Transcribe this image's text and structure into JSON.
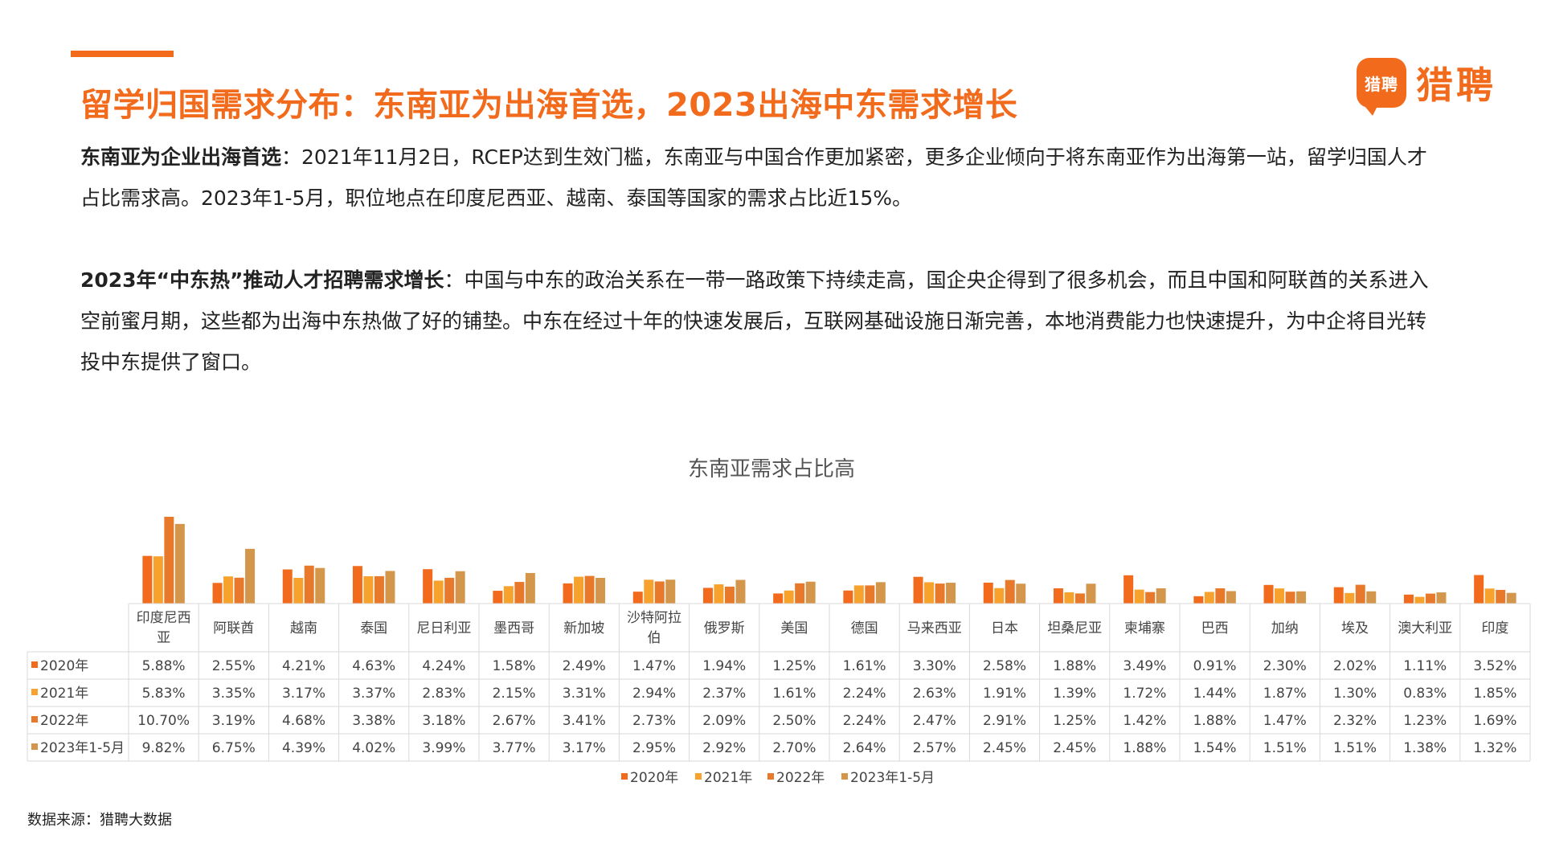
{
  "page": {
    "title": "留学归国需求分布：东南亚为出海首选，2023出海中东需求增长",
    "logo_badge": "猎聘",
    "logo_text": "猎聘",
    "para1_bold": "东南亚为企业出海首选",
    "para1_text": "：2021年11月2日，RCEP达到生效门槛，东南亚与中国合作更加紧密，更多企业倾向于将东南亚作为出海第一站，留学归国人才占比需求高。2023年1-5月，职位地点在印度尼西亚、越南、泰国等国家的需求占比近15%。",
    "para2_bold": "2023年“中东热”推动人才招聘需求增长",
    "para2_text": "：中国与中东的政治关系在一带一路政策下持续走高，国企央企得到了很多机会，而且中国和阿联酋的关系进入空前蜜月期，这些都为出海中东热做了好的铺垫。中东在经过十年的快速发展后，互联网基础设施日渐完善，本地消费能力也快速提升，为中企将目光转投中东提供了窗口。",
    "source": "数据来源：猎聘大数据"
  },
  "chart_data": {
    "type": "bar",
    "title": "东南亚需求占比高",
    "categories": [
      "印度尼西亚",
      "阿联酋",
      "越南",
      "泰国",
      "尼日利亚",
      "墨西哥",
      "新加坡",
      "沙特阿拉伯",
      "俄罗斯",
      "美国",
      "德国",
      "马来西亚",
      "日本",
      "坦桑尼亚",
      "柬埔寨",
      "巴西",
      "加纳",
      "埃及",
      "澳大利亚",
      "印度"
    ],
    "series": [
      {
        "name": "2020年",
        "color": "#f26b1d",
        "values": [
          5.88,
          2.55,
          4.21,
          4.63,
          4.24,
          1.58,
          2.49,
          1.47,
          1.94,
          1.25,
          1.61,
          3.3,
          2.58,
          1.88,
          3.49,
          0.91,
          2.3,
          2.02,
          1.11,
          3.52
        ],
        "labels": [
          "5.88%",
          "2.55%",
          "4.21%",
          "4.63%",
          "4.24%",
          "1.58%",
          "2.49%",
          "1.47%",
          "1.94%",
          "1.25%",
          "1.61%",
          "3.30%",
          "2.58%",
          "1.88%",
          "3.49%",
          "0.91%",
          "2.30%",
          "2.02%",
          "1.11%",
          "3.52%"
        ]
      },
      {
        "name": "2021年",
        "color": "#f7a22d",
        "values": [
          5.83,
          3.35,
          3.17,
          3.37,
          2.83,
          2.15,
          3.31,
          2.94,
          2.37,
          1.61,
          2.24,
          2.63,
          1.91,
          1.39,
          1.72,
          1.44,
          1.87,
          1.3,
          0.83,
          1.85
        ],
        "labels": [
          "5.83%",
          "3.35%",
          "3.17%",
          "3.37%",
          "2.83%",
          "2.15%",
          "3.31%",
          "2.94%",
          "2.37%",
          "1.61%",
          "2.24%",
          "2.63%",
          "1.91%",
          "1.39%",
          "1.72%",
          "1.44%",
          "1.87%",
          "1.30%",
          "0.83%",
          "1.85%"
        ]
      },
      {
        "name": "2022年",
        "color": "#e8792a",
        "values": [
          10.7,
          3.19,
          4.68,
          3.38,
          3.18,
          2.67,
          3.41,
          2.73,
          2.09,
          2.5,
          2.24,
          2.47,
          2.91,
          1.25,
          1.42,
          1.88,
          1.47,
          2.32,
          1.23,
          1.69
        ],
        "labels": [
          "10.70%",
          "3.19%",
          "4.68%",
          "3.38%",
          "3.18%",
          "2.67%",
          "3.41%",
          "2.73%",
          "2.09%",
          "2.50%",
          "2.24%",
          "2.47%",
          "2.91%",
          "1.25%",
          "1.42%",
          "1.88%",
          "1.47%",
          "2.32%",
          "1.23%",
          "1.69%"
        ]
      },
      {
        "name": "2023年1-5月",
        "color": "#d4964a",
        "values": [
          9.82,
          6.75,
          4.39,
          4.02,
          3.99,
          3.77,
          3.17,
          2.95,
          2.92,
          2.7,
          2.64,
          2.57,
          2.45,
          2.45,
          1.88,
          1.54,
          1.51,
          1.51,
          1.38,
          1.32
        ],
        "labels": [
          "9.82%",
          "6.75%",
          "4.39%",
          "4.02%",
          "3.99%",
          "3.77%",
          "3.17%",
          "2.95%",
          "2.92%",
          "2.70%",
          "2.64%",
          "2.57%",
          "2.45%",
          "2.45%",
          "1.88%",
          "1.54%",
          "1.51%",
          "1.51%",
          "1.38%",
          "1.32%"
        ]
      }
    ],
    "ylim": [
      0,
      11
    ],
    "legend_placement": "bottom",
    "data_table": true
  }
}
